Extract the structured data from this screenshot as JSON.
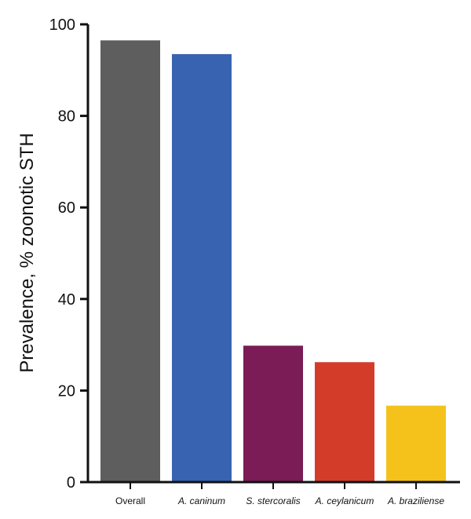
{
  "chart_data": {
    "type": "bar",
    "categories": [
      "Overall",
      "A. caninum",
      "S. stercoralis",
      "A. ceylanicum",
      "A. braziliense"
    ],
    "category_italic": [
      false,
      true,
      true,
      true,
      true
    ],
    "values": [
      96.5,
      93.5,
      29.8,
      26.2,
      16.7
    ],
    "colors": [
      "#5e5e5e",
      "#3763b1",
      "#7b1c56",
      "#d43c2a",
      "#f5c21b"
    ],
    "title": "",
    "xlabel": "",
    "ylabel": "Prevalence, % zoonotic STH",
    "ylim": [
      0,
      100
    ],
    "yticks": [
      "0",
      "20",
      "40",
      "60",
      "80",
      "100"
    ],
    "grid": false,
    "legend": "none"
  }
}
